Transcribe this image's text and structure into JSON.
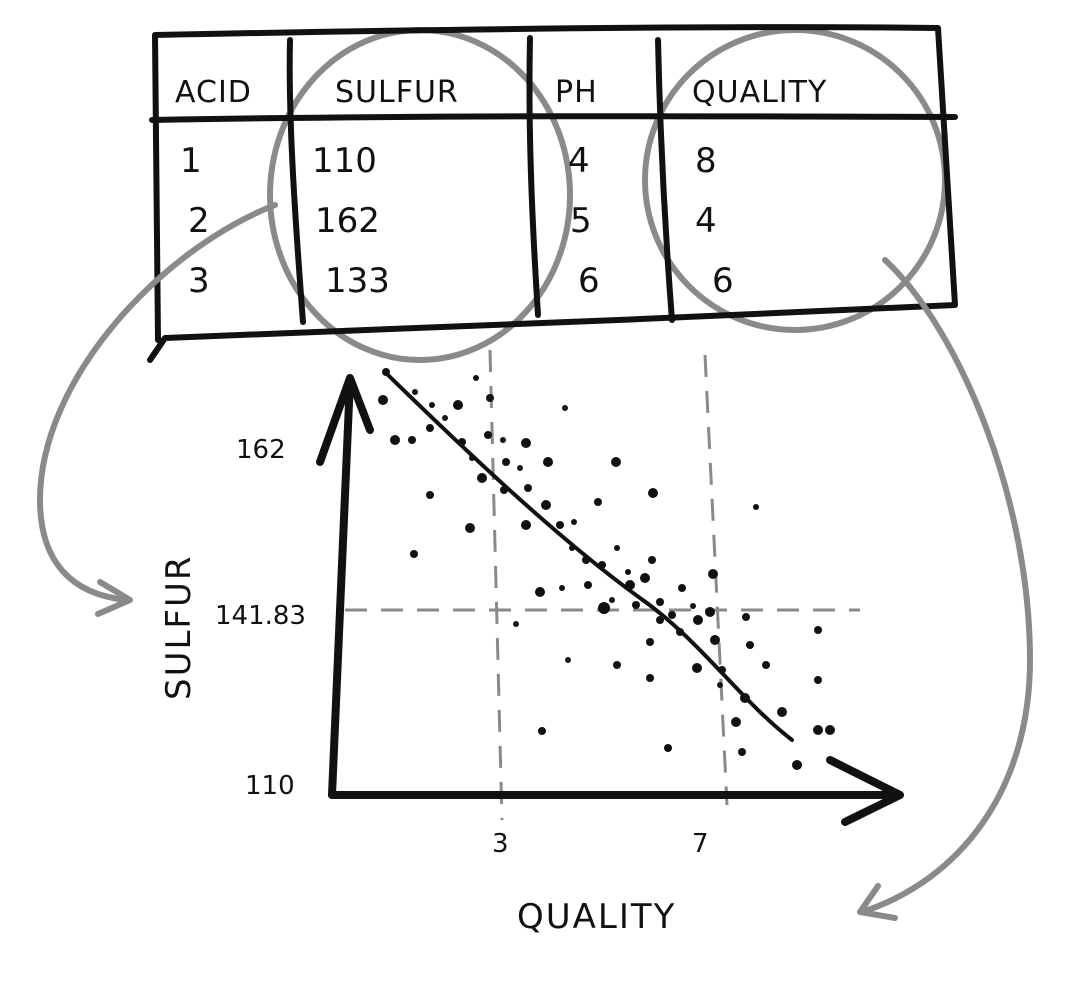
{
  "table": {
    "headers": [
      "ACID",
      "SULFUR",
      "PH",
      "QUALITY"
    ],
    "rows": [
      [
        "1",
        "110",
        "4",
        "8"
      ],
      [
        "2",
        "162",
        "5",
        "4"
      ],
      [
        "3",
        "133",
        "6",
        "6"
      ]
    ]
  },
  "plot": {
    "x_label": "QUALITY",
    "y_label": "SULFUR",
    "x_ticks": [
      "3",
      "7"
    ],
    "y_ticks": [
      "162",
      "141.83",
      "110"
    ]
  },
  "colors": {
    "ink": "#111111",
    "annotation_gray": "#8a8a8a",
    "paper": "#ffffff"
  }
}
